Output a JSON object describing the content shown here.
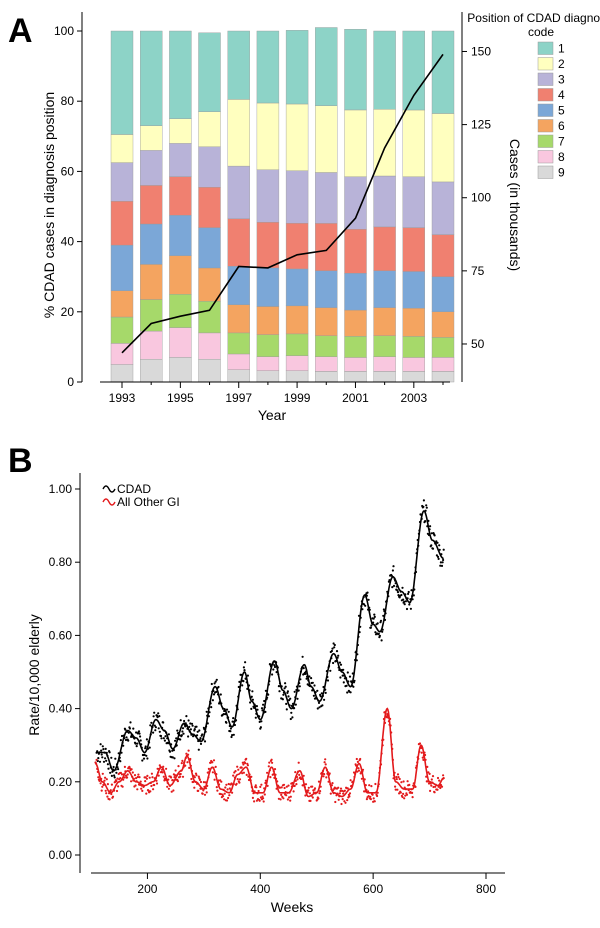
{
  "chart_data": [
    {
      "panel": "A",
      "type": "bar",
      "stacked": true,
      "categories": [
        1993,
        1994,
        1995,
        1996,
        1997,
        1998,
        1999,
        2000,
        2001,
        2002,
        2003,
        2004
      ],
      "x_tick_labels": [
        "1993",
        "1995",
        "1997",
        "1999",
        "2001",
        "2003"
      ],
      "xlabel": "Year",
      "ylabel": "% CDAD cases in diagnosis position",
      "ylim": [
        0,
        100
      ],
      "y_ticks": [
        0,
        20,
        40,
        60,
        80,
        100
      ],
      "y2label": "Cases (in thousands)",
      "y2lim": [
        37,
        157
      ],
      "y2_ticks": [
        50,
        75,
        100,
        125,
        150
      ],
      "legend_title": "Position of CDAD diagnosis code",
      "legend_placement": "right",
      "series": [
        {
          "name": "9",
          "color": "#d9d9d9",
          "values": [
            5,
            6.5,
            7,
            6.5,
            3.5,
            3.2,
            3.2,
            3,
            3,
            3,
            3,
            3
          ]
        },
        {
          "name": "8",
          "color": "#f9c7df",
          "values": [
            6,
            8,
            8.5,
            7.5,
            4.5,
            4,
            4.3,
            4.2,
            4,
            4.2,
            4,
            4
          ]
        },
        {
          "name": "7",
          "color": "#a6d96a",
          "values": [
            7.5,
            9,
            9.5,
            9,
            6,
            6.3,
            6.2,
            6,
            6,
            6,
            6,
            5.7
          ]
        },
        {
          "name": "6",
          "color": "#f4a460",
          "values": [
            7.5,
            10,
            11,
            9.5,
            8,
            8,
            8,
            8,
            7.5,
            8,
            8,
            7.3
          ]
        },
        {
          "name": "5",
          "color": "#7ba7d7",
          "values": [
            13,
            11.5,
            11.5,
            11.5,
            11,
            11,
            10.5,
            10.5,
            10.5,
            10.5,
            10.5,
            10
          ]
        },
        {
          "name": "4",
          "color": "#f08070",
          "values": [
            12.5,
            11,
            11,
            11.5,
            13.5,
            13,
            13,
            13.5,
            12.5,
            12.5,
            12.5,
            12
          ]
        },
        {
          "name": "3",
          "color": "#b8b3d8",
          "values": [
            11,
            10,
            9.5,
            11.5,
            15,
            15,
            15,
            14.5,
            15,
            14.5,
            14.5,
            15
          ]
        },
        {
          "name": "2",
          "color": "#ffffbf",
          "values": [
            8,
            7,
            7,
            10,
            19,
            19,
            19,
            19,
            19,
            19,
            19,
            19.5
          ]
        },
        {
          "name": "1",
          "color": "#8dd3c7",
          "values": [
            29.5,
            27,
            25,
            22.5,
            19.5,
            20.5,
            21,
            22.3,
            23,
            22.3,
            22.5,
            23.5
          ]
        }
      ],
      "line_series": {
        "axis": "y2",
        "x": [
          1993,
          1994,
          1995,
          1996,
          1997,
          1998,
          1999,
          2000,
          2001,
          2002,
          2003,
          2004
        ],
        "values": [
          47,
          57,
          59.5,
          61.5,
          76.5,
          76,
          80.5,
          82,
          93,
          117,
          135,
          149
        ]
      }
    },
    {
      "panel": "B",
      "type": "line",
      "xlabel": "Weeks",
      "ylabel": "Rate/10,000 elderly",
      "xlim": [
        80,
        810
      ],
      "x_ticks": [
        200,
        400,
        600,
        800
      ],
      "ylim": [
        -0.02,
        1.04
      ],
      "y_ticks": [
        0.0,
        0.2,
        0.4,
        0.6,
        0.8,
        1.0
      ],
      "y_tick_labels": [
        "0.00",
        "0.20",
        "0.40",
        "0.60",
        "0.80",
        "1.00"
      ],
      "legend_placement": "top-left",
      "series": [
        {
          "name": "CDAD",
          "color": "#000000",
          "x": [
            110,
            125,
            140,
            165,
            180,
            195,
            215,
            230,
            245,
            265,
            280,
            295,
            320,
            335,
            350,
            372,
            385,
            400,
            425,
            440,
            455,
            478,
            490,
            505,
            530,
            545,
            560,
            585,
            600,
            612,
            635,
            650,
            665,
            690,
            705,
            725
          ],
          "values": [
            0.28,
            0.28,
            0.23,
            0.34,
            0.32,
            0.28,
            0.37,
            0.34,
            0.29,
            0.36,
            0.33,
            0.31,
            0.46,
            0.4,
            0.35,
            0.5,
            0.42,
            0.37,
            0.53,
            0.45,
            0.4,
            0.52,
            0.46,
            0.42,
            0.55,
            0.5,
            0.46,
            0.71,
            0.63,
            0.61,
            0.76,
            0.72,
            0.69,
            0.94,
            0.86,
            0.81
          ]
        },
        {
          "name": "All Other GI",
          "color": "#e31a1c",
          "x": [
            108,
            120,
            135,
            150,
            165,
            180,
            195,
            210,
            225,
            240,
            260,
            270,
            285,
            300,
            315,
            330,
            345,
            360,
            375,
            390,
            405,
            420,
            435,
            450,
            470,
            485,
            500,
            515,
            530,
            545,
            560,
            575,
            590,
            605,
            625,
            640,
            655,
            670,
            685,
            700,
            715,
            725
          ],
          "values": [
            0.25,
            0.2,
            0.17,
            0.2,
            0.23,
            0.2,
            0.19,
            0.2,
            0.24,
            0.19,
            0.23,
            0.27,
            0.2,
            0.18,
            0.24,
            0.18,
            0.17,
            0.22,
            0.24,
            0.17,
            0.17,
            0.24,
            0.17,
            0.17,
            0.23,
            0.16,
            0.17,
            0.24,
            0.17,
            0.16,
            0.18,
            0.25,
            0.17,
            0.17,
            0.4,
            0.2,
            0.18,
            0.18,
            0.3,
            0.2,
            0.19,
            0.21
          ]
        }
      ]
    }
  ]
}
